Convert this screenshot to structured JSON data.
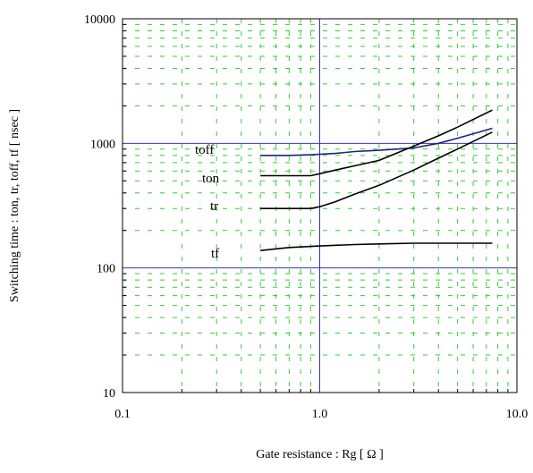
{
  "chart_data": {
    "type": "line",
    "xlabel": "Gate resistance : Rg [ Ω ]",
    "ylabel": "Switching time : ton, tr, toff, tf [ nsec ]",
    "x_scale": "log",
    "y_scale": "log",
    "xlim": [
      0.1,
      10
    ],
    "ylim": [
      10,
      10000
    ],
    "x_ticks": [
      0.1,
      1,
      10
    ],
    "x_tick_labels": [
      "0.1",
      "1.0",
      "10.0"
    ],
    "y_ticks": [
      10,
      100,
      1000,
      10000
    ],
    "y_tick_labels": [
      "10",
      "100",
      "1000",
      "10000"
    ],
    "grid": "major solid blue, minor dashed green",
    "colors": {
      "major_grid": "#3333cc",
      "minor_grid": "#33cc33",
      "axis": "#000000",
      "series_toff": "#1a237e",
      "series_other": "#000000"
    },
    "series": [
      {
        "name": "toff",
        "x": [
          0.5,
          0.7,
          0.9,
          1.2,
          1.5,
          2.0,
          3.0,
          4.0,
          5.0,
          7.5
        ],
        "values": [
          800,
          800,
          810,
          830,
          860,
          880,
          920,
          1000,
          1100,
          1320
        ]
      },
      {
        "name": "ton",
        "x": [
          0.5,
          0.7,
          0.9,
          1.0,
          1.2,
          1.5,
          2.0,
          3.0,
          4.0,
          5.0,
          7.5
        ],
        "values": [
          550,
          550,
          550,
          570,
          610,
          660,
          730,
          950,
          1150,
          1350,
          1850
        ]
      },
      {
        "name": "tr",
        "x": [
          0.5,
          0.7,
          0.9,
          1.0,
          1.2,
          1.5,
          2.0,
          3.0,
          4.0,
          5.0,
          7.5
        ],
        "values": [
          300,
          300,
          300,
          310,
          340,
          390,
          460,
          610,
          760,
          900,
          1230
        ]
      },
      {
        "name": "tf",
        "x": [
          0.5,
          0.7,
          1.0,
          1.5,
          2.0,
          3.0,
          5.0,
          7.5
        ],
        "values": [
          138,
          146,
          150,
          154,
          156,
          158,
          158,
          158
        ]
      }
    ]
  }
}
